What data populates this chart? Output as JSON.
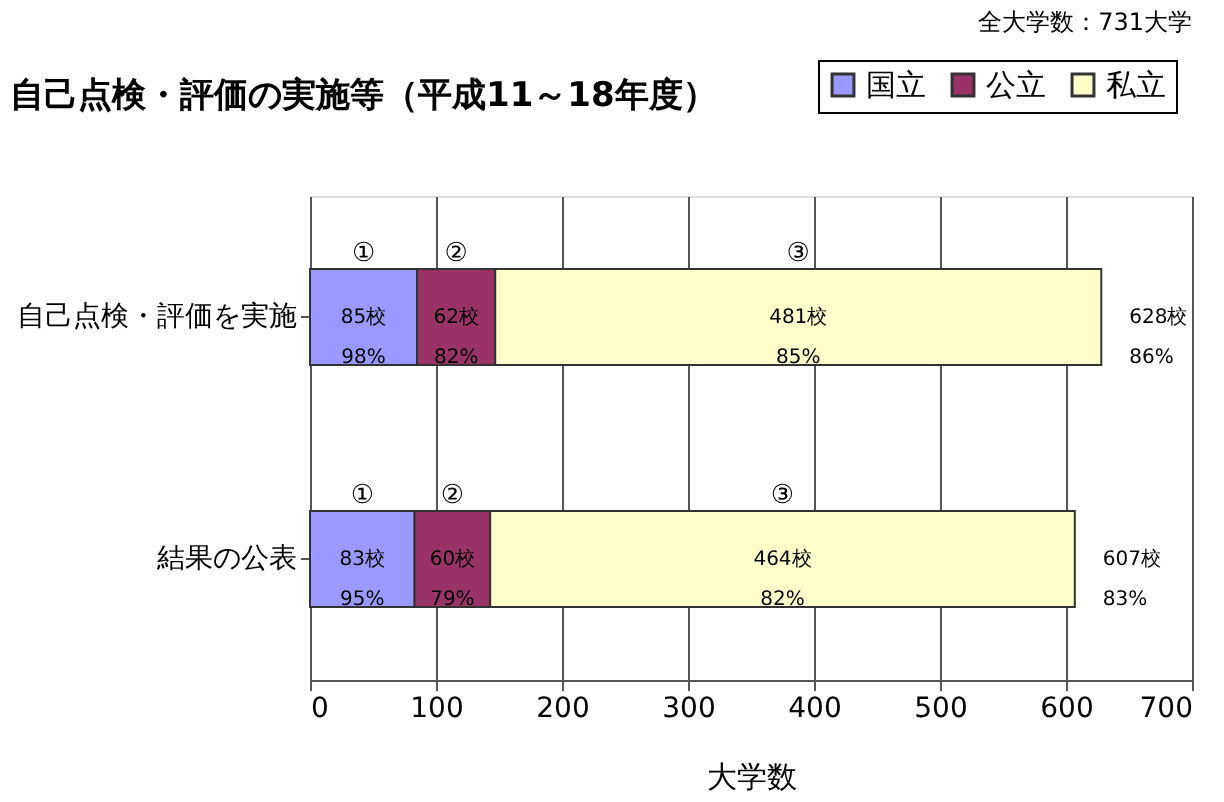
{
  "chart_data": {
    "type": "bar",
    "orientation": "horizontal",
    "stacked": true,
    "title": "自己点検・評価の実施等（平成11～18年度）",
    "xlabel": "大学数",
    "categories": [
      "自己点検・評価を実施",
      "結果の公表"
    ],
    "series": [
      {
        "name": "国立",
        "color": "#9999ff",
        "values": [
          85,
          83
        ],
        "value_labels": [
          "85校\n98%",
          "83校\n95%"
        ]
      },
      {
        "name": "公立",
        "color": "#993366",
        "values": [
          62,
          60
        ],
        "value_labels": [
          "62校\n82%",
          "60校\n79%"
        ]
      },
      {
        "name": "私立",
        "color": "#ffffcc",
        "values": [
          481,
          464
        ],
        "value_labels": [
          "481校\n85%",
          "464校\n82%"
        ]
      }
    ],
    "totals": [
      "628校\n86%",
      "607校\n83%"
    ],
    "xlim": [
      0,
      700
    ],
    "xticks": [
      0,
      100,
      200,
      300,
      400,
      500,
      600,
      700
    ],
    "grid": "x",
    "legend": "top right",
    "annotations": [
      "全大学数：731大学",
      "①",
      "②",
      "③",
      "①",
      "②",
      "③"
    ]
  }
}
